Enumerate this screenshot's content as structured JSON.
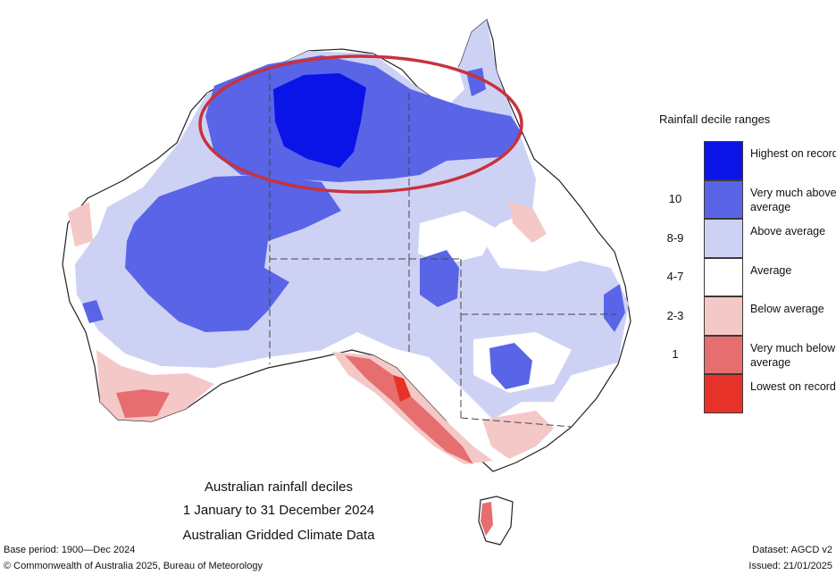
{
  "map": {
    "title_lines": [
      "Australian rainfall deciles",
      "1 January to 31 December 2024",
      "Australian Gridded Climate Data"
    ],
    "base_period": "Base period: 1900—Dec 2024",
    "dataset": "Dataset: AGCD v2",
    "copyright": "© Commonwealth of Australia 2025, Bureau of Meteorology",
    "issued": "Issued: 21/01/2025",
    "highlight_color": "#c8323c"
  },
  "legend": {
    "title": "Rainfall decile ranges",
    "items": [
      {
        "code": "",
        "label": "Highest on record",
        "color": "#0a14e6"
      },
      {
        "code": "10",
        "label": "Very much above average",
        "color": "#5a64e6"
      },
      {
        "code": "8-9",
        "label": "Above average",
        "color": "#cdd2f5"
      },
      {
        "code": "4-7",
        "label": "Average",
        "color": "#ffffff"
      },
      {
        "code": "2-3",
        "label": "Below average",
        "color": "#f5c8c8"
      },
      {
        "code": "1",
        "label": "Very much below average",
        "color": "#e66e6e"
      },
      {
        "code": "",
        "label": "Lowest on record",
        "color": "#e63228"
      }
    ]
  }
}
